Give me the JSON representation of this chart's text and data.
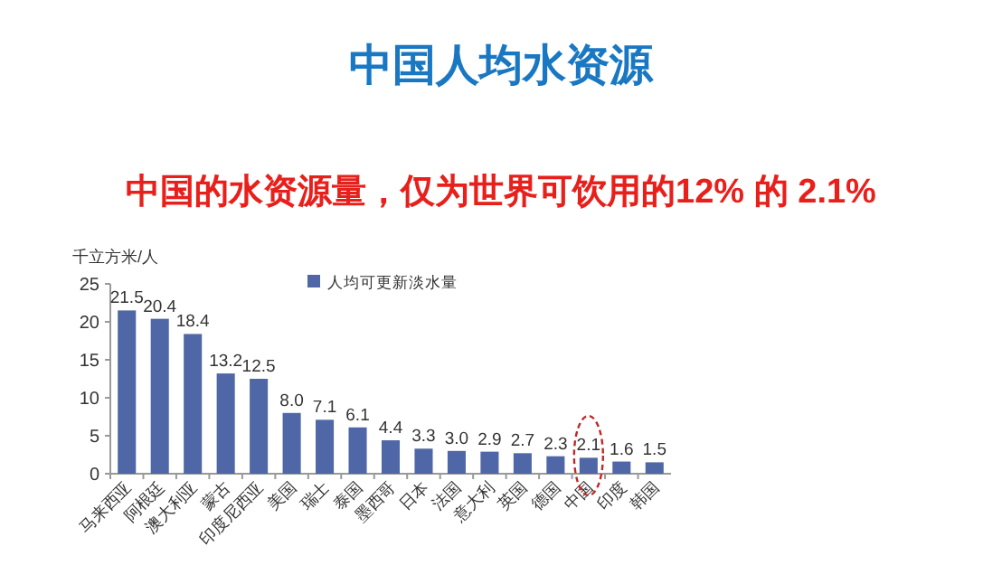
{
  "chart_data": {
    "type": "bar",
    "title": "中国人均水资源",
    "subtitle": "中国的水资源量，仅为世界可饮用的12% 的 2.1%",
    "ylabel": "千立方米/人",
    "categories": [
      "马来西亚",
      "阿根廷",
      "澳大利亚",
      "蒙古",
      "印度尼西亚",
      "美国",
      "瑞士",
      "泰国",
      "墨西哥",
      "日本",
      "法国",
      "意大利",
      "英国",
      "德国",
      "中国",
      "印度",
      "韩国"
    ],
    "series": [
      {
        "name": "人均可更新淡水量",
        "color": "#4f67a6",
        "values": [
          21.5,
          20.4,
          18.4,
          13.2,
          12.5,
          8.0,
          7.1,
          6.1,
          4.4,
          3.3,
          3.0,
          2.9,
          2.7,
          2.3,
          2.1,
          1.6,
          1.5
        ],
        "value_labels": [
          "21.5",
          "20.4",
          "18.4",
          "13.2",
          "12.5",
          "8.0",
          "7.1",
          "6.1",
          "4.4",
          "3.3",
          "3.0",
          "2.9",
          "2.7",
          "2.3",
          "2.1",
          "1.6",
          "1.5"
        ]
      }
    ],
    "ylim": [
      0,
      25
    ],
    "yticks": [
      0,
      5,
      10,
      15,
      20,
      25
    ],
    "legend": "top",
    "grid": false
  }
}
